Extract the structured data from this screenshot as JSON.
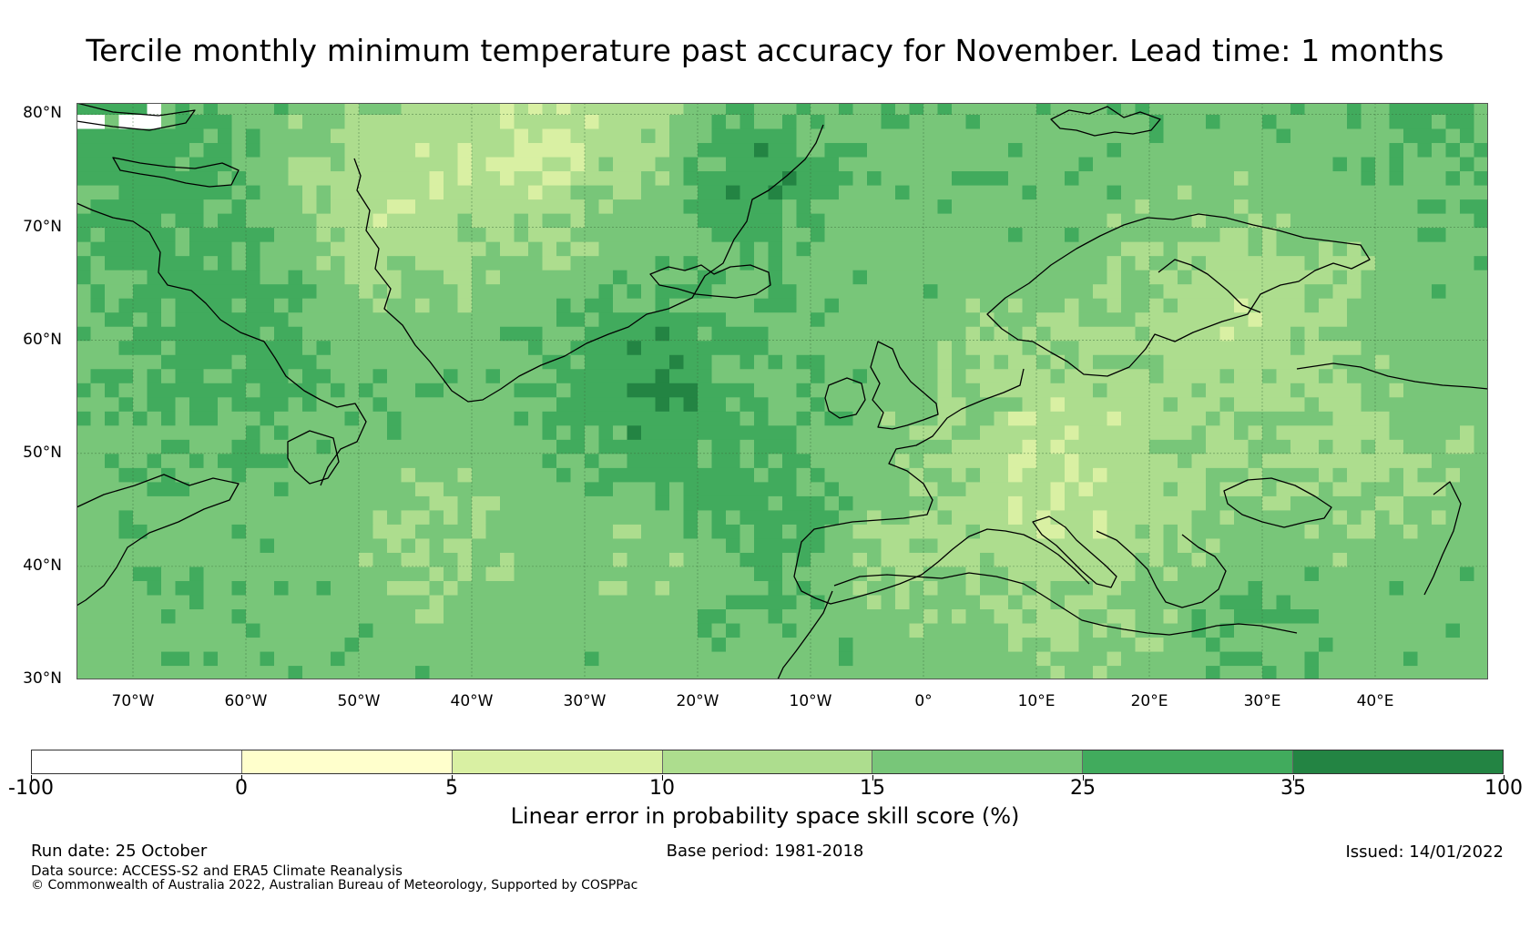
{
  "title": "Tercile monthly minimum temperature past accuracy for November. Lead time: 1 months",
  "map": {
    "region": "North Atlantic and Europe",
    "lon_range": [
      -75,
      50
    ],
    "lat_range": [
      30,
      81
    ],
    "lat_labels": [
      "30°N",
      "40°N",
      "50°N",
      "60°N",
      "70°N",
      "80°N"
    ],
    "lat_values": [
      30,
      40,
      50,
      60,
      70,
      80
    ],
    "lon_labels": [
      "70°W",
      "60°W",
      "50°W",
      "40°W",
      "30°W",
      "20°W",
      "10°W",
      "0°",
      "10°E",
      "20°E",
      "30°E",
      "40°E"
    ],
    "lon_values": [
      -70,
      -60,
      -50,
      -40,
      -30,
      -20,
      -10,
      0,
      10,
      20,
      30,
      40
    ],
    "category_colors": [
      "#ffffff",
      "#ffffcc",
      "#d9f0a3",
      "#addd8e",
      "#78c679",
      "#41ab5d",
      "#238443"
    ]
  },
  "colorbar": {
    "title": "Linear error in probability space skill score (%)",
    "tick_labels": [
      "-100",
      "0",
      "5",
      "10",
      "15",
      "25",
      "35",
      "100"
    ],
    "bins": [
      {
        "range": "-100 to 0",
        "color": "#ffffff"
      },
      {
        "range": "0 to 5",
        "color": "#ffffcc"
      },
      {
        "range": "5 to 10",
        "color": "#d9f0a3"
      },
      {
        "range": "10 to 15",
        "color": "#addd8e"
      },
      {
        "range": "15 to 25",
        "color": "#78c679"
      },
      {
        "range": "25 to 35",
        "color": "#41ab5d"
      },
      {
        "range": "35 to 100",
        "color": "#238443"
      }
    ]
  },
  "footer": {
    "run_date": "Run date: 25 October",
    "base_period": "Base period: 1981-2018",
    "issued": "Issued: 14/01/2022",
    "data_source": "Data source: ACCESS-S2 and ERA5 Climate Reanalysis",
    "copyright": "© Commonwealth of Australia 2022, Australian Bureau of Meteorology, Supported by COSPPac"
  }
}
